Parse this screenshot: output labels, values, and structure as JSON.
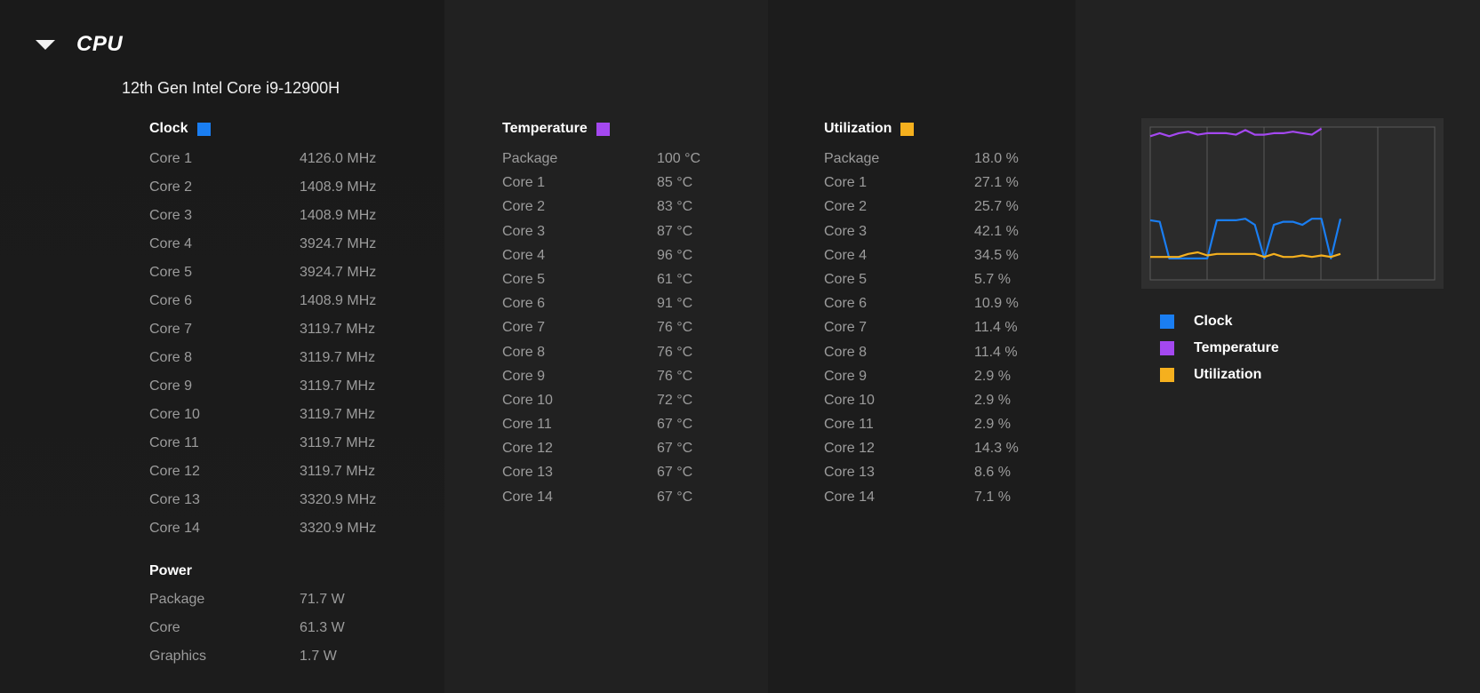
{
  "section": {
    "title": "CPU"
  },
  "cpu_model": "12th Gen Intel Core i9-12900H",
  "colors": {
    "clock": "#1a7ef2",
    "temperature": "#a448f0",
    "utilization": "#f5b01e"
  },
  "clock": {
    "label": "Clock",
    "rows": [
      {
        "label": "Core 1",
        "value": "4126.0 MHz"
      },
      {
        "label": "Core 2",
        "value": "1408.9 MHz"
      },
      {
        "label": "Core 3",
        "value": "1408.9 MHz"
      },
      {
        "label": "Core 4",
        "value": "3924.7 MHz"
      },
      {
        "label": "Core 5",
        "value": "3924.7 MHz"
      },
      {
        "label": "Core 6",
        "value": "1408.9 MHz"
      },
      {
        "label": "Core 7",
        "value": "3119.7 MHz"
      },
      {
        "label": "Core 8",
        "value": "3119.7 MHz"
      },
      {
        "label": "Core 9",
        "value": "3119.7 MHz"
      },
      {
        "label": "Core 10",
        "value": "3119.7 MHz"
      },
      {
        "label": "Core 11",
        "value": "3119.7 MHz"
      },
      {
        "label": "Core 12",
        "value": "3119.7 MHz"
      },
      {
        "label": "Core 13",
        "value": "3320.9 MHz"
      },
      {
        "label": "Core 14",
        "value": "3320.9 MHz"
      }
    ]
  },
  "power": {
    "label": "Power",
    "rows": [
      {
        "label": "Package",
        "value": "71.7 W"
      },
      {
        "label": "Core",
        "value": "61.3 W"
      },
      {
        "label": "Graphics",
        "value": "1.7 W"
      }
    ]
  },
  "temperature": {
    "label": "Temperature",
    "rows": [
      {
        "label": "Package",
        "value": "100 °C"
      },
      {
        "label": "Core 1",
        "value": "85 °C"
      },
      {
        "label": "Core 2",
        "value": "83 °C"
      },
      {
        "label": "Core 3",
        "value": "87 °C"
      },
      {
        "label": "Core 4",
        "value": "96 °C"
      },
      {
        "label": "Core 5",
        "value": "61 °C"
      },
      {
        "label": "Core 6",
        "value": "91 °C"
      },
      {
        "label": "Core 7",
        "value": "76 °C"
      },
      {
        "label": "Core 8",
        "value": "76 °C"
      },
      {
        "label": "Core 9",
        "value": "76 °C"
      },
      {
        "label": "Core 10",
        "value": "72 °C"
      },
      {
        "label": "Core 11",
        "value": "67 °C"
      },
      {
        "label": "Core 12",
        "value": "67 °C"
      },
      {
        "label": "Core 13",
        "value": "67 °C"
      },
      {
        "label": "Core 14",
        "value": "67 °C"
      }
    ]
  },
  "utilization": {
    "label": "Utilization",
    "rows": [
      {
        "label": "Package",
        "value": "18.0 %"
      },
      {
        "label": "Core 1",
        "value": "27.1 %"
      },
      {
        "label": "Core 2",
        "value": "25.7 %"
      },
      {
        "label": "Core 3",
        "value": "42.1 %"
      },
      {
        "label": "Core 4",
        "value": "34.5 %"
      },
      {
        "label": "Core 5",
        "value": "5.7 %"
      },
      {
        "label": "Core 6",
        "value": "10.9 %"
      },
      {
        "label": "Core 7",
        "value": "11.4 %"
      },
      {
        "label": "Core 8",
        "value": "11.4 %"
      },
      {
        "label": "Core 9",
        "value": "2.9 %"
      },
      {
        "label": "Core 10",
        "value": "2.9 %"
      },
      {
        "label": "Core 11",
        "value": "2.9 %"
      },
      {
        "label": "Core 12",
        "value": "14.3 %"
      },
      {
        "label": "Core 13",
        "value": "8.6 %"
      },
      {
        "label": "Core 14",
        "value": "7.1 %"
      }
    ]
  },
  "legend": [
    {
      "label": "Clock",
      "color": "#1a7ef2"
    },
    {
      "label": "Temperature",
      "color": "#a448f0"
    },
    {
      "label": "Utilization",
      "color": "#f5b01e"
    }
  ],
  "chart_data": {
    "type": "line",
    "grid": true,
    "ylim": [
      0,
      100
    ],
    "series": [
      {
        "name": "Temperature",
        "color": "#a448f0",
        "values": [
          94,
          96,
          94,
          96,
          97,
          95,
          96,
          96,
          96,
          95,
          98,
          95,
          95,
          96,
          96,
          97,
          96,
          95,
          99
        ]
      },
      {
        "name": "Clock",
        "color": "#1a7ef2",
        "values": [
          39,
          38,
          14,
          14,
          14,
          14,
          14,
          39,
          39,
          39,
          40,
          36,
          14,
          36,
          38,
          38,
          36,
          40,
          40,
          14,
          40
        ]
      },
      {
        "name": "Utilization",
        "color": "#f5b01e",
        "values": [
          15,
          15,
          15,
          15,
          17,
          18,
          16,
          17,
          17,
          17,
          17,
          17,
          15,
          17,
          15,
          15,
          16,
          15,
          16,
          15,
          17
        ]
      }
    ]
  }
}
